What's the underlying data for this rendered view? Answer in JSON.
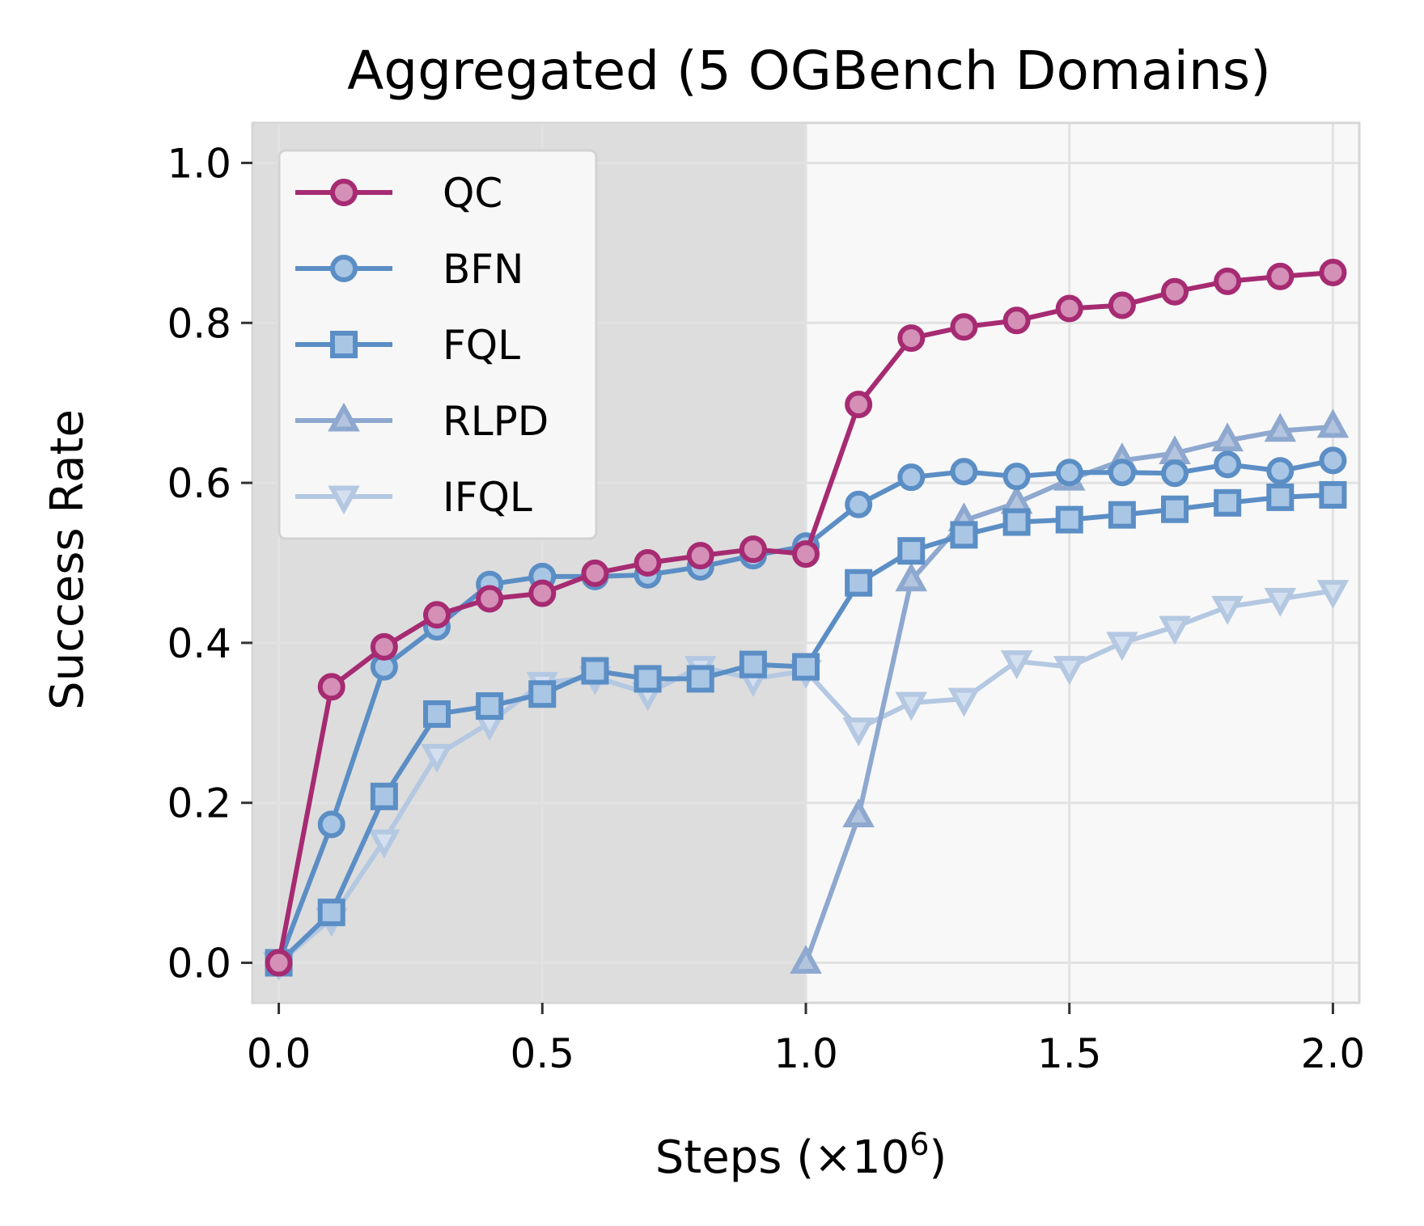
{
  "chart_data": {
    "type": "line",
    "title": "Aggregated (5 OGBench Domains)",
    "xlabel": "Steps (×10⁶)",
    "ylabel": "Success Rate",
    "xlim": [
      -0.05,
      2.05
    ],
    "ylim": [
      -0.05,
      1.05
    ],
    "xticks": [
      0.0,
      0.5,
      1.0,
      1.5,
      2.0
    ],
    "xtick_labels": [
      "0.0",
      "0.5",
      "1.0",
      "1.5",
      "2.0"
    ],
    "yticks": [
      0.0,
      0.2,
      0.4,
      0.6,
      0.8,
      1.0
    ],
    "ytick_labels": [
      "0.0",
      "0.2",
      "0.4",
      "0.6",
      "0.8",
      "1.0"
    ],
    "grid": true,
    "legend_position": "upper-left",
    "shaded_region": {
      "x": [
        -0.05,
        1.0
      ],
      "meaning": "offline phase",
      "color": "#dddddd"
    },
    "background_color": "#f8f8f8",
    "series": [
      {
        "name": "QC",
        "marker": "circle",
        "color": "#a62b72",
        "marker_fill": "#d490b6",
        "x": [
          0.0,
          0.1,
          0.2,
          0.3,
          0.4,
          0.5,
          0.6,
          0.7,
          0.8,
          0.9,
          1.0,
          1.1,
          1.2,
          1.3,
          1.4,
          1.5,
          1.6,
          1.7,
          1.8,
          1.9,
          2.0
        ],
        "y": [
          0.0,
          0.345,
          0.395,
          0.435,
          0.455,
          0.462,
          0.487,
          0.5,
          0.509,
          0.517,
          0.511,
          0.698,
          0.781,
          0.795,
          0.803,
          0.818,
          0.822,
          0.839,
          0.852,
          0.858,
          0.863
        ]
      },
      {
        "name": "BFN",
        "marker": "circle",
        "color": "#5b8ec5",
        "marker_fill": "#a9c6e5",
        "x": [
          0.0,
          0.1,
          0.2,
          0.3,
          0.4,
          0.5,
          0.6,
          0.7,
          0.8,
          0.9,
          1.0,
          1.1,
          1.2,
          1.3,
          1.4,
          1.5,
          1.6,
          1.7,
          1.8,
          1.9,
          2.0
        ],
        "y": [
          0.0,
          0.173,
          0.37,
          0.42,
          0.473,
          0.483,
          0.483,
          0.485,
          0.495,
          0.509,
          0.521,
          0.573,
          0.607,
          0.614,
          0.608,
          0.613,
          0.613,
          0.612,
          0.623,
          0.615,
          0.628
        ]
      },
      {
        "name": "FQL",
        "marker": "square",
        "color": "#5b8ec5",
        "marker_fill": "#a9c6e5",
        "x": [
          0.0,
          0.1,
          0.2,
          0.3,
          0.4,
          0.5,
          0.6,
          0.7,
          0.8,
          0.9,
          1.0,
          1.1,
          1.2,
          1.3,
          1.4,
          1.5,
          1.6,
          1.7,
          1.8,
          1.9,
          2.0
        ],
        "y": [
          0.0,
          0.063,
          0.208,
          0.311,
          0.321,
          0.336,
          0.365,
          0.355,
          0.355,
          0.373,
          0.37,
          0.475,
          0.515,
          0.535,
          0.551,
          0.554,
          0.56,
          0.567,
          0.575,
          0.582,
          0.585
        ]
      },
      {
        "name": "RLPD",
        "marker": "triangle-up",
        "color": "#8ea8cf",
        "marker_fill": "#b3c4de",
        "x": [
          1.0,
          1.1,
          1.2,
          1.3,
          1.4,
          1.5,
          1.6,
          1.7,
          1.8,
          1.9,
          2.0
        ],
        "y": [
          0.0,
          0.183,
          0.478,
          0.553,
          0.575,
          0.604,
          0.628,
          0.637,
          0.653,
          0.665,
          0.67
        ]
      },
      {
        "name": "IFQL",
        "marker": "triangle-down",
        "color": "#b4c8e2",
        "marker_fill": "#d3e0f0",
        "x": [
          0.0,
          0.1,
          0.2,
          0.3,
          0.4,
          0.5,
          0.6,
          0.7,
          0.8,
          0.9,
          1.0,
          1.1,
          1.2,
          1.3,
          1.4,
          1.5,
          1.6,
          1.7,
          1.8,
          1.9,
          2.0
        ],
        "y": [
          0.0,
          0.055,
          0.153,
          0.26,
          0.3,
          0.35,
          0.357,
          0.337,
          0.37,
          0.355,
          0.365,
          0.293,
          0.325,
          0.33,
          0.377,
          0.37,
          0.4,
          0.42,
          0.445,
          0.455,
          0.465
        ]
      }
    ]
  }
}
